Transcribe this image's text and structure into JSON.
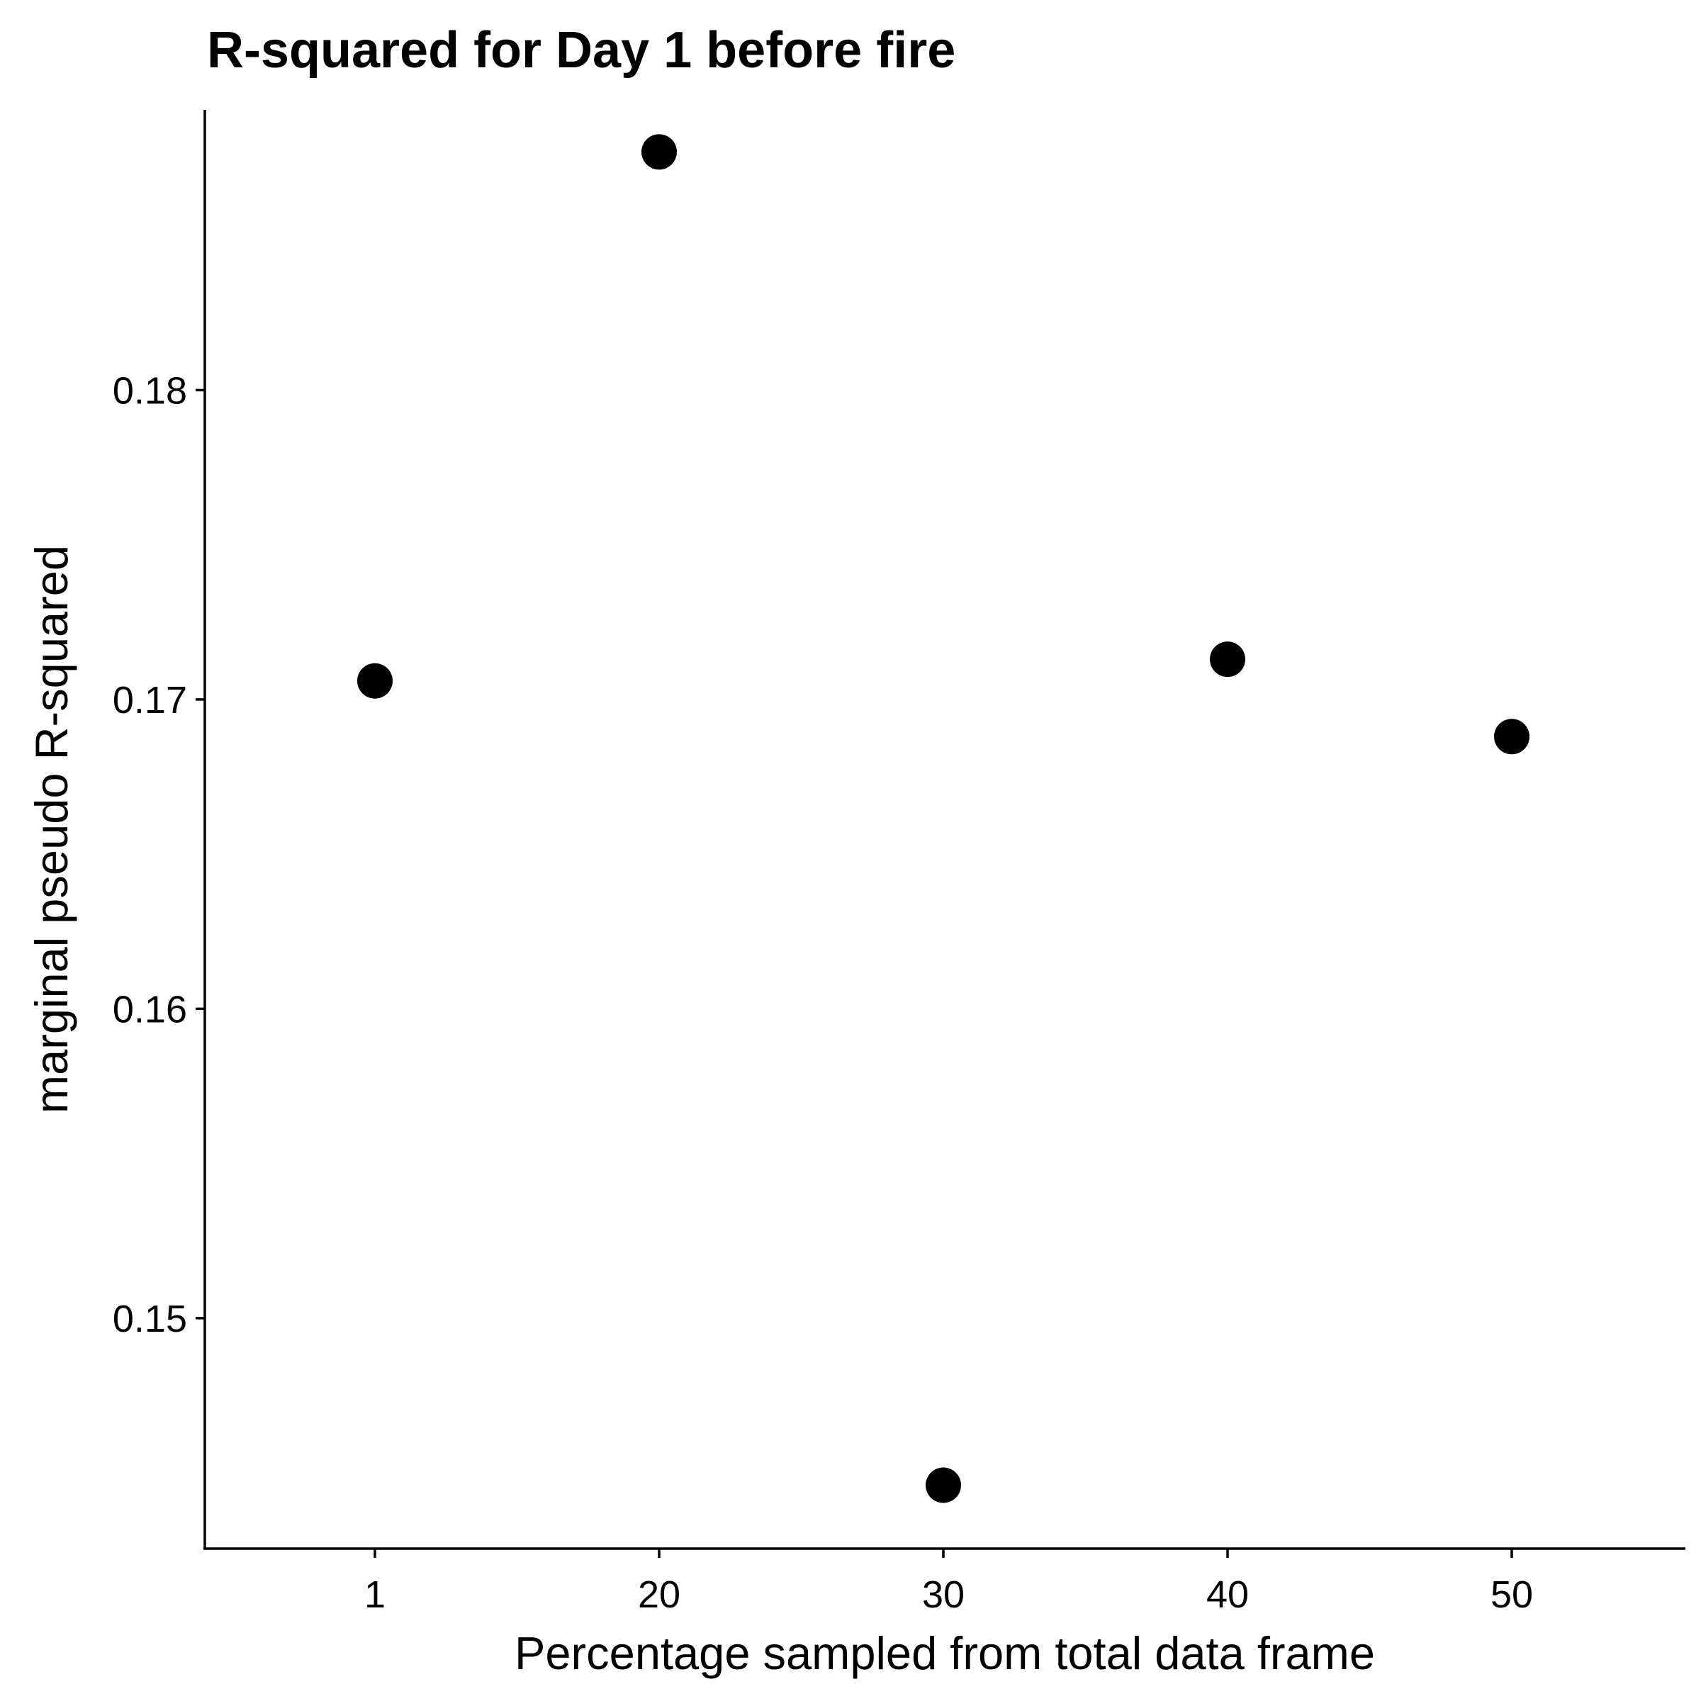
{
  "chart_data": {
    "type": "scatter",
    "title": "R-squared for Day 1 before fire",
    "xlabel": "Percentage sampled from total data frame",
    "ylabel": "marginal pseudo R-squared",
    "x_categories": [
      "1",
      "20",
      "30",
      "40",
      "50"
    ],
    "points": [
      {
        "x": "1",
        "y": 0.1706
      },
      {
        "x": "20",
        "y": 0.1877
      },
      {
        "x": "30",
        "y": 0.1446
      },
      {
        "x": "40",
        "y": 0.1713
      },
      {
        "x": "50",
        "y": 0.1688
      }
    ],
    "y_ticks": [
      0.15,
      0.16,
      0.17,
      0.18
    ],
    "y_tick_labels": [
      "0.15",
      "0.16",
      "0.17",
      "0.18"
    ],
    "ylim": [
      0.14255,
      0.18906
    ],
    "grid": false,
    "legend": "none",
    "point_color": "#000000"
  }
}
